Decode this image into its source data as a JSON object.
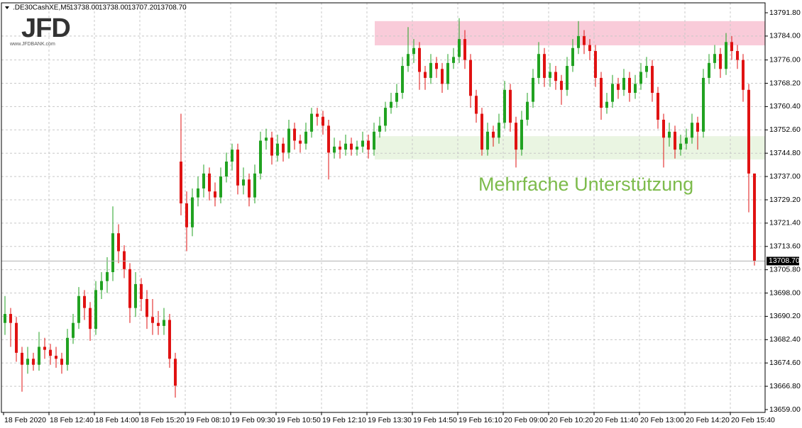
{
  "chart_data": {
    "type": "candlestick",
    "header": ".DE30CashXE,M5",
    "header_values": [
      "13738.00",
      "13738.00",
      "13707.20",
      "13708.70"
    ],
    "logo": "JFD",
    "logo_url": "www.JFDBANK.com",
    "annotation": "Mehrfache Unterstützung",
    "annotation_color": "#7dbb4c",
    "up_color": "#21a221",
    "down_color": "#e01212",
    "grid": true,
    "ylim": [
      13659.0,
      13791.8
    ],
    "yticks": [
      {
        "value": 13791.8,
        "label": "13791.80"
      },
      {
        "value": 13784.0,
        "label": "13784.00"
      },
      {
        "value": 13776.0,
        "label": "13776.00"
      },
      {
        "value": 13768.2,
        "label": "13768.20"
      },
      {
        "value": 13760.4,
        "label": "13760.40"
      },
      {
        "value": 13752.6,
        "label": "13752.60"
      },
      {
        "value": 13744.8,
        "label": "13744.80"
      },
      {
        "value": 13737.0,
        "label": "13737.00"
      },
      {
        "value": 13729.2,
        "label": "13729.20"
      },
      {
        "value": 13721.4,
        "label": "13721.40"
      },
      {
        "value": 13713.6,
        "label": "13713.60"
      },
      {
        "value": 13705.8,
        "label": "13705.80"
      },
      {
        "value": 13698.0,
        "label": "13698.00"
      },
      {
        "value": 13690.2,
        "label": "13690.20"
      },
      {
        "value": 13682.4,
        "label": "13682.40"
      },
      {
        "value": 13674.6,
        "label": "13674.60"
      },
      {
        "value": 13666.8,
        "label": "13666.80"
      },
      {
        "value": 13659.0,
        "label": "13659.00"
      }
    ],
    "current_price": {
      "value": 13708.7,
      "label": "13708.70"
    },
    "zones": [
      {
        "ymin": 13780.9,
        "ymax": 13789.0,
        "color": "#f9cbd9"
      },
      {
        "ymin": 13742.7,
        "ymax": 13750.5,
        "color": "#eaf5e2"
      }
    ],
    "xticks": [
      {
        "value": 0,
        "label": "18 Feb 2020"
      },
      {
        "value": 8,
        "label": "18 Feb 12:40"
      },
      {
        "value": 16,
        "label": "18 Feb 14:00"
      },
      {
        "value": 24,
        "label": "18 Feb 15:20"
      },
      {
        "value": 32,
        "label": "19 Feb 08:10"
      },
      {
        "value": 40,
        "label": "19 Feb 09:30"
      },
      {
        "value": 48,
        "label": "19 Feb 10:50"
      },
      {
        "value": 56,
        "label": "19 Feb 12:10"
      },
      {
        "value": 64,
        "label": "19 Feb 13:30"
      },
      {
        "value": 72,
        "label": "19 Feb 14:50"
      },
      {
        "value": 80,
        "label": "19 Feb 16:10"
      },
      {
        "value": 88,
        "label": "20 Feb 09:00"
      },
      {
        "value": 96,
        "label": "20 Feb 10:20"
      },
      {
        "value": 104,
        "label": "20 Feb 11:40"
      },
      {
        "value": 112,
        "label": "20 Feb 13:00"
      },
      {
        "value": 120,
        "label": "20 Feb 14:20"
      },
      {
        "value": 128,
        "label": "20 Feb 15:40"
      }
    ],
    "ohlc": [
      [
        13688,
        13697,
        13684,
        13691
      ],
      [
        13691,
        13693,
        13680,
        13688
      ],
      [
        13688,
        13690,
        13675,
        13678
      ],
      [
        13678,
        13680,
        13665,
        13674
      ],
      [
        13674,
        13680,
        13671,
        13676
      ],
      [
        13676,
        13678,
        13672,
        13674
      ],
      [
        13674,
        13685,
        13672,
        13680
      ],
      [
        13680,
        13683,
        13676,
        13679
      ],
      [
        13679,
        13681,
        13674,
        13677
      ],
      [
        13677,
        13680,
        13673,
        13676
      ],
      [
        13676,
        13678,
        13671,
        13674
      ],
      [
        13674,
        13686,
        13672,
        13683
      ],
      [
        13683,
        13691,
        13681,
        13688
      ],
      [
        13688,
        13700,
        13686,
        13697
      ],
      [
        13697,
        13699,
        13689,
        13693
      ],
      [
        13693,
        13695,
        13682,
        13686
      ],
      [
        13686,
        13702,
        13684,
        13699
      ],
      [
        13699,
        13705,
        13696,
        13702
      ],
      [
        13702,
        13710,
        13698,
        13705
      ],
      [
        13705,
        13727,
        13702,
        13718
      ],
      [
        13718,
        13721,
        13708,
        13712
      ],
      [
        13712,
        13714,
        13703,
        13706
      ],
      [
        13706,
        13708,
        13688,
        13693
      ],
      [
        13693,
        13705,
        13690,
        13701
      ],
      [
        13701,
        13703,
        13692,
        13696
      ],
      [
        13696,
        13699,
        13686,
        13690
      ],
      [
        13690,
        13696,
        13684,
        13688
      ],
      [
        13688,
        13692,
        13684,
        13687
      ],
      [
        13687,
        13693,
        13684,
        13689
      ],
      [
        13689,
        13691,
        13673,
        13676
      ],
      [
        13676,
        13678,
        13663,
        13667
      ],
      [
        13742,
        13758,
        13724,
        13728
      ],
      [
        13728,
        13732,
        13712,
        13720
      ],
      [
        13720,
        13733,
        13717,
        13730
      ],
      [
        13730,
        13737,
        13727,
        13733
      ],
      [
        13733,
        13741,
        13730,
        13738
      ],
      [
        13738,
        13740,
        13729,
        13732
      ],
      [
        13732,
        13735,
        13727,
        13730
      ],
      [
        13730,
        13740,
        13728,
        13737
      ],
      [
        13737,
        13745,
        13735,
        13742
      ],
      [
        13742,
        13748,
        13739,
        13746
      ],
      [
        13746,
        13748,
        13731,
        13734
      ],
      [
        13734,
        13740,
        13731,
        13736
      ],
      [
        13736,
        13738,
        13727,
        13730
      ],
      [
        13730,
        13741,
        13728,
        13738
      ],
      [
        13738,
        13752,
        13736,
        13749
      ],
      [
        13749,
        13753,
        13746,
        13750
      ],
      [
        13750,
        13752,
        13741,
        13744
      ],
      [
        13744,
        13751,
        13742,
        13748
      ],
      [
        13748,
        13750,
        13742,
        13745
      ],
      [
        13745,
        13756,
        13743,
        13753
      ],
      [
        13753,
        13755,
        13746,
        13749
      ],
      [
        13749,
        13751,
        13745,
        13748
      ],
      [
        13748,
        13755,
        13746,
        13752
      ],
      [
        13752,
        13760,
        13750,
        13758
      ],
      [
        13758,
        13760,
        13754,
        13757
      ],
      [
        13757,
        13759,
        13751,
        13754
      ],
      [
        13754,
        13756,
        13736,
        13745
      ],
      [
        13745,
        13750,
        13743,
        13747
      ],
      [
        13747,
        13749,
        13743,
        13746
      ],
      [
        13746,
        13751,
        13744,
        13748
      ],
      [
        13748,
        13750,
        13744,
        13746
      ],
      [
        13746,
        13749,
        13744,
        13747
      ],
      [
        13747,
        13752,
        13745,
        13749
      ],
      [
        13749,
        13751,
        13743,
        13746
      ],
      [
        13746,
        13755,
        13744,
        13752
      ],
      [
        13752,
        13757,
        13750,
        13754
      ],
      [
        13754,
        13762,
        13752,
        13760
      ],
      [
        13760,
        13765,
        13758,
        13762
      ],
      [
        13762,
        13768,
        13760,
        13765
      ],
      [
        13765,
        13777,
        13763,
        13774
      ],
      [
        13774,
        13787,
        13772,
        13778
      ],
      [
        13778,
        13783,
        13775,
        13780
      ],
      [
        13780,
        13782,
        13766,
        13772
      ],
      [
        13772,
        13774,
        13766,
        13770
      ],
      [
        13770,
        13778,
        13768,
        13775
      ],
      [
        13775,
        13777,
        13770,
        13773
      ],
      [
        13773,
        13775,
        13765,
        13768
      ],
      [
        13768,
        13778,
        13766,
        13775
      ],
      [
        13775,
        13780,
        13773,
        13777
      ],
      [
        13777,
        13790,
        13775,
        13783
      ],
      [
        13783,
        13786,
        13773,
        13776
      ],
      [
        13776,
        13778,
        13760,
        13764
      ],
      [
        13764,
        13766,
        13755,
        13758
      ],
      [
        13758,
        13760,
        13744,
        13746
      ],
      [
        13746,
        13755,
        13744,
        13752
      ],
      [
        13752,
        13754,
        13747,
        13750
      ],
      [
        13750,
        13758,
        13748,
        13755
      ],
      [
        13755,
        13769,
        13753,
        13766
      ],
      [
        13766,
        13768,
        13752,
        13755
      ],
      [
        13755,
        13757,
        13740,
        13746
      ],
      [
        13746,
        13759,
        13744,
        13756
      ],
      [
        13756,
        13765,
        13754,
        13762
      ],
      [
        13762,
        13773,
        13760,
        13770
      ],
      [
        13770,
        13782,
        13768,
        13778
      ],
      [
        13778,
        13780,
        13767,
        13770
      ],
      [
        13770,
        13775,
        13767,
        13772
      ],
      [
        13772,
        13774,
        13766,
        13769
      ],
      [
        13769,
        13771,
        13761,
        13766
      ],
      [
        13766,
        13777,
        13764,
        13774
      ],
      [
        13774,
        13783,
        13772,
        13780
      ],
      [
        13780,
        13789,
        13778,
        13784
      ],
      [
        13784,
        13786,
        13778,
        13781
      ],
      [
        13781,
        13783,
        13776,
        13779
      ],
      [
        13779,
        13781,
        13767,
        13770
      ],
      [
        13770,
        13772,
        13756,
        13760
      ],
      [
        13760,
        13765,
        13758,
        13762
      ],
      [
        13762,
        13771,
        13760,
        13768
      ],
      [
        13768,
        13770,
        13763,
        13766
      ],
      [
        13766,
        13773,
        13764,
        13770
      ],
      [
        13770,
        13772,
        13762,
        13765
      ],
      [
        13765,
        13771,
        13763,
        13768
      ],
      [
        13768,
        13775,
        13766,
        13772
      ],
      [
        13772,
        13777,
        13770,
        13774
      ],
      [
        13774,
        13776,
        13762,
        13765
      ],
      [
        13765,
        13767,
        13753,
        13756
      ],
      [
        13756,
        13758,
        13740,
        13750
      ],
      [
        13750,
        13755,
        13747,
        13752
      ],
      [
        13752,
        13754,
        13743,
        13746
      ],
      [
        13746,
        13751,
        13744,
        13748
      ],
      [
        13748,
        13753,
        13746,
        13750
      ],
      [
        13750,
        13758,
        13748,
        13755
      ],
      [
        13755,
        13757,
        13746,
        13752
      ],
      [
        13752,
        13773,
        13750,
        13770
      ],
      [
        13770,
        13778,
        13768,
        13775
      ],
      [
        13775,
        13781,
        13773,
        13778
      ],
      [
        13778,
        13780,
        13770,
        13773
      ],
      [
        13773,
        13785,
        13771,
        13782
      ],
      [
        13782,
        13784,
        13776,
        13779
      ],
      [
        13779,
        13781,
        13773,
        13776
      ],
      [
        13776,
        13778,
        13762,
        13766
      ],
      [
        13766,
        13768,
        13725,
        13738
      ],
      [
        13738,
        13738,
        13707.2,
        13708.7
      ]
    ]
  }
}
